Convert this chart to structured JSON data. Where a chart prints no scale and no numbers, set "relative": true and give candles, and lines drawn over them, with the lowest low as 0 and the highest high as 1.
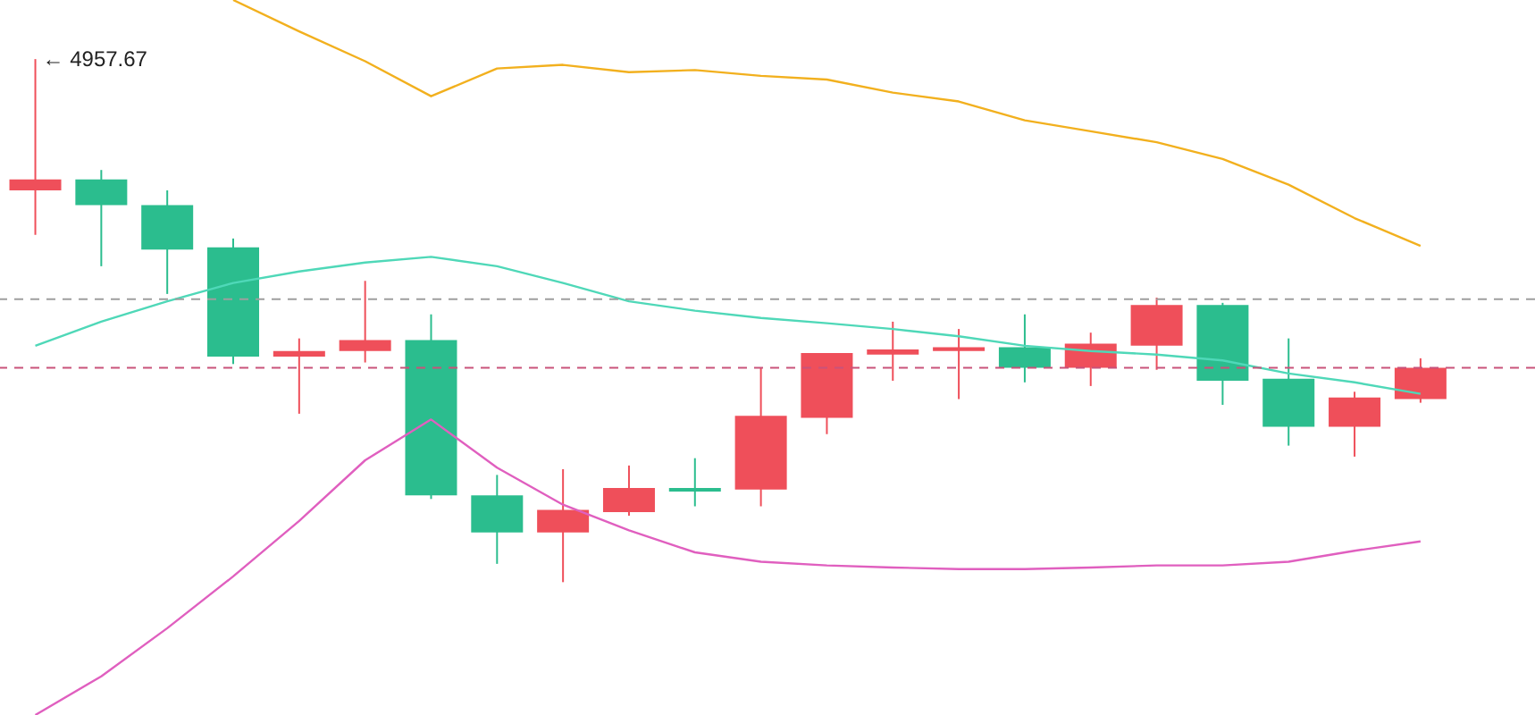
{
  "chart_data": {
    "type": "candlestick",
    "relative": true,
    "tick_labels": false,
    "categories": [
      null,
      null,
      null,
      null,
      null,
      null,
      null,
      null,
      null,
      null,
      null,
      null,
      null,
      null,
      null,
      null,
      null,
      null,
      null,
      null,
      null,
      null
    ],
    "ohlc": [
      [
        0.749,
        1,
        0.664,
        0.77
      ],
      [
        0.77,
        0.788,
        0.604,
        0.721
      ],
      [
        0.721,
        0.749,
        0.551,
        0.636
      ],
      [
        0.64,
        0.657,
        0.417,
        0.431
      ],
      [
        0.431,
        0.466,
        0.322,
        0.442
      ],
      [
        0.442,
        0.576,
        0.42,
        0.463
      ],
      [
        0.463,
        0.512,
        0.159,
        0.166
      ],
      [
        0.166,
        0.205,
        0.035,
        0.095
      ],
      [
        0.095,
        0.216,
        0,
        0.138
      ],
      [
        0.134,
        0.223,
        0.127,
        0.18
      ],
      [
        0.18,
        0.237,
        0.145,
        0.173
      ],
      [
        0.177,
        0.41,
        0.145,
        0.318
      ],
      [
        0.314,
        0.438,
        0.283,
        0.438
      ],
      [
        0.435,
        0.498,
        0.385,
        0.445
      ],
      [
        0.442,
        0.484,
        0.35,
        0.449
      ],
      [
        0.449,
        0.512,
        0.382,
        0.41
      ],
      [
        0.41,
        0.477,
        0.375,
        0.456
      ],
      [
        0.452,
        0.544,
        0.406,
        0.53
      ],
      [
        0.53,
        0.534,
        0.339,
        0.385
      ],
      [
        0.389,
        0.466,
        0.261,
        0.297
      ],
      [
        0.297,
        0.364,
        0.24,
        0.353
      ],
      [
        0.35,
        0.428,
        0.343,
        0.41
      ]
    ],
    "colors": [
      "#ef4f5a",
      "#2bbd8e",
      "#2bbd8e",
      "#2bbd8e",
      "#ef4f5a",
      "#ef4f5a",
      "#2bbd8e",
      "#2bbd8e",
      "#ef4f5a",
      "#ef4f5a",
      "#2bbd8e",
      "#ef4f5a",
      "#ef4f5a",
      "#ef4f5a",
      "#ef4f5a",
      "#2bbd8e",
      "#ef4f5a",
      "#ef4f5a",
      "#2bbd8e",
      "#2bbd8e",
      "#ef4f5a",
      "#ef4f5a"
    ],
    "series": [
      {
        "type": "line",
        "color": "#f2b01e",
        "values": [
          null,
          null,
          null,
          1.113,
          1.053,
          0.996,
          0.929,
          0.982,
          0.989,
          0.975,
          0.979,
          0.968,
          0.961,
          0.936,
          0.919,
          0.883,
          0.862,
          0.841,
          0.809,
          0.76,
          0.696,
          0.643
        ]
      },
      {
        "type": "line",
        "color": "#4fd8b8",
        "values": [
          0.452,
          0.498,
          0.537,
          0.572,
          0.594,
          0.611,
          0.622,
          0.604,
          0.572,
          0.537,
          0.519,
          0.505,
          0.495,
          0.484,
          0.47,
          0.452,
          0.442,
          0.435,
          0.424,
          0.399,
          0.382,
          0.36
        ]
      },
      {
        "type": "line",
        "color": "#e05fbf",
        "values": [
          -0.254,
          -0.18,
          -0.088,
          0.011,
          0.117,
          0.233,
          0.311,
          0.219,
          0.148,
          0.099,
          0.057,
          0.039,
          0.032,
          0.028,
          0.025,
          0.025,
          0.028,
          0.032,
          0.032,
          0.039,
          0.06,
          0.078
        ]
      }
    ],
    "ref_lines": [
      {
        "axis": "y",
        "value": 0.541,
        "color": "#9e9e9e",
        "line_style": "dashed"
      },
      {
        "axis": "y",
        "value": 0.41,
        "color": "#c9537a",
        "line_style": "dashed"
      }
    ],
    "annotations": [
      "← 4957.67"
    ]
  }
}
